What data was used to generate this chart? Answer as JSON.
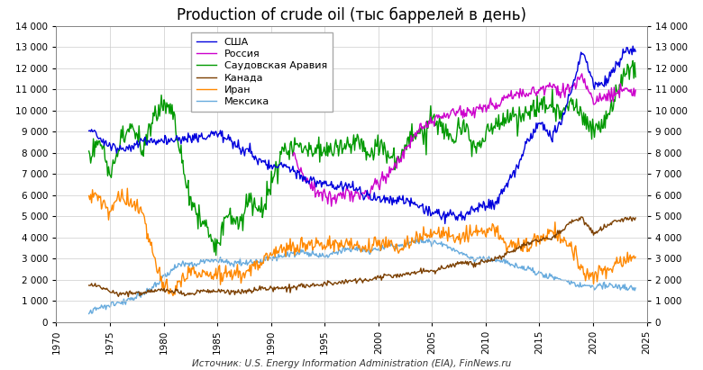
{
  "title": "Production of crude oil (тыс баррелей в день)",
  "source": "Источник: U.S. Energy Information Administration (EIA), FinNews.ru",
  "legend_labels": [
    "США",
    "Россия",
    "Саудовская Аравия",
    "Канада",
    "Иран",
    "Мексика"
  ],
  "line_colors": [
    "#0000dd",
    "#cc00cc",
    "#009900",
    "#7b3f00",
    "#ff8800",
    "#66aadd"
  ],
  "ylim": [
    0,
    14000
  ],
  "xlim": [
    1970.0,
    2025.0
  ],
  "yticks": [
    0,
    1000,
    2000,
    3000,
    4000,
    5000,
    6000,
    7000,
    8000,
    9000,
    10000,
    11000,
    12000,
    13000,
    14000
  ],
  "xticks": [
    1970,
    1975,
    1980,
    1985,
    1990,
    1995,
    2000,
    2005,
    2010,
    2015,
    2020,
    2025
  ],
  "background_color": "#ffffff",
  "grid_color": "#cccccc",
  "title_fontsize": 12
}
